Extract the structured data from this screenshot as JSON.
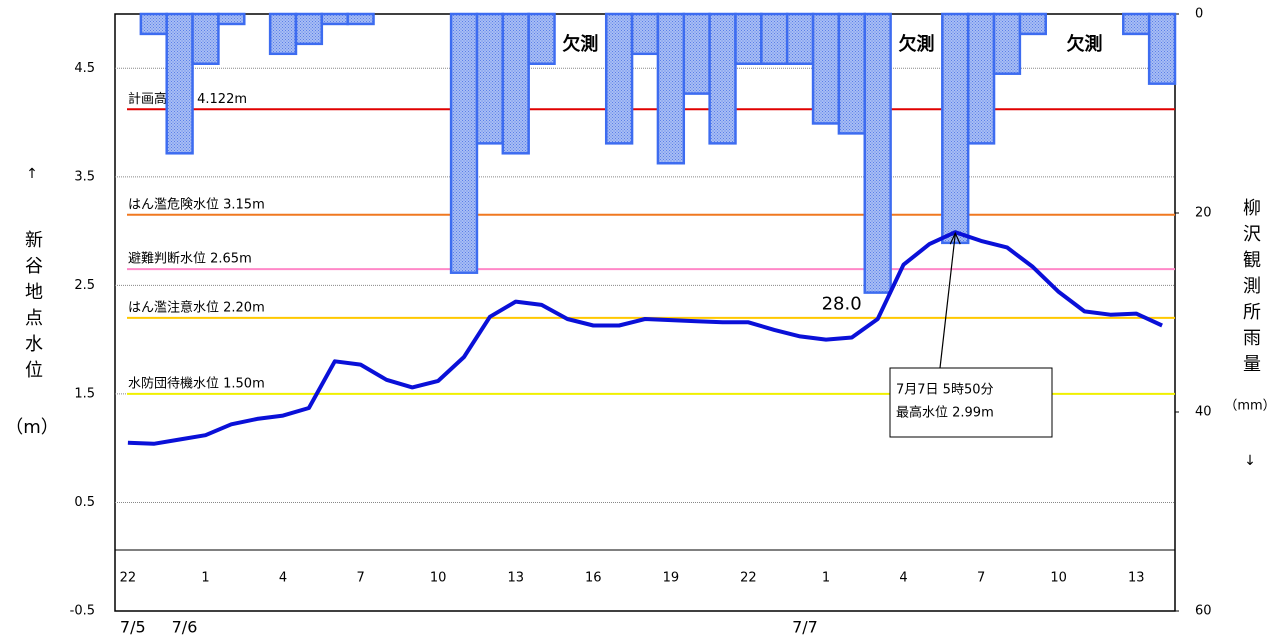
{
  "chart_data": {
    "type": "bar-line",
    "categories": [
      "22",
      null,
      null,
      "1",
      null,
      null,
      "4",
      null,
      null,
      "7",
      null,
      null,
      "10",
      null,
      null,
      "13",
      null,
      null,
      "16",
      null,
      null,
      "19",
      null,
      null,
      "22",
      null,
      null,
      "1",
      null,
      null,
      "4",
      null,
      null,
      "7",
      null,
      null,
      "10",
      null,
      null,
      "13",
      null
    ],
    "date_labels": [
      {
        "label": "7/5",
        "index": 0
      },
      {
        "label": "7/6",
        "index": 2
      },
      {
        "label": "7/7",
        "index": 26
      }
    ],
    "ylim": [
      -0.5,
      5.0
    ],
    "yticks": [
      -0.5,
      0.5,
      1.5,
      2.5,
      3.5,
      4.5
    ],
    "y2lim": [
      0,
      60
    ],
    "y2ticks": [
      0,
      20,
      40,
      60
    ],
    "y2_inverted": true,
    "ylabel_arrow": "↑",
    "ylabel": "新谷地点水位",
    "ylabel_unit": "（m）",
    "y2label": "柳沢観測所雨量",
    "y2label_unit": "（mm）",
    "y2label_arrow": "↓",
    "series": [
      {
        "name": "雨量",
        "axis": "y2",
        "type": "bar",
        "color": "#3d6cf0",
        "values": [
          0,
          2,
          14,
          5,
          1,
          0,
          4,
          3,
          1,
          1,
          0,
          0,
          0,
          26,
          13,
          14,
          5,
          null,
          null,
          13,
          4,
          15,
          8,
          13,
          5,
          5,
          5,
          11,
          12,
          28,
          null,
          null,
          23,
          13,
          6,
          2,
          null,
          null,
          null,
          2,
          7
        ],
        "value_labels": [
          null,
          null,
          null,
          null,
          null,
          null,
          null,
          null,
          null,
          null,
          null,
          null,
          null,
          null,
          null,
          null,
          null,
          null,
          null,
          null,
          null,
          null,
          null,
          null,
          null,
          null,
          null,
          null,
          null,
          "28.0",
          null,
          null,
          null,
          null,
          null,
          null,
          null,
          null,
          null,
          null,
          null
        ]
      },
      {
        "name": "水位",
        "axis": "y",
        "type": "line",
        "color": "#0a10d8",
        "values": [
          1.05,
          1.04,
          1.08,
          1.12,
          1.22,
          1.27,
          1.3,
          1.37,
          1.8,
          1.77,
          1.63,
          1.56,
          1.62,
          1.84,
          2.21,
          2.35,
          2.32,
          2.19,
          2.13,
          2.13,
          2.19,
          2.18,
          2.17,
          2.16,
          2.16,
          2.09,
          2.03,
          2.0,
          2.02,
          2.19,
          2.69,
          2.88,
          2.99,
          2.91,
          2.85,
          2.67,
          2.44,
          2.26,
          2.23,
          2.24,
          2.13
        ]
      }
    ],
    "missing_labels": [
      "欠測",
      "欠測",
      "欠測"
    ],
    "thresholds": [
      {
        "label": "計画高水位 4.122m",
        "value": 4.122,
        "color": "#e00000"
      },
      {
        "label": "はん濫危険水位 3.15m",
        "value": 3.15,
        "color": "#f07820"
      },
      {
        "label": "避難判断水位 2.65m",
        "value": 2.65,
        "color": "#ff88c8"
      },
      {
        "label": "はん濫注意水位 2.20m",
        "value": 2.2,
        "color": "#ffc800"
      },
      {
        "label": "水防団待機水位 1.50m",
        "value": 1.5,
        "color": "#f0f000"
      }
    ],
    "annotation": {
      "lines": [
        "7月7日 5時50分",
        "最高水位 2.99m"
      ]
    },
    "grid": true
  }
}
